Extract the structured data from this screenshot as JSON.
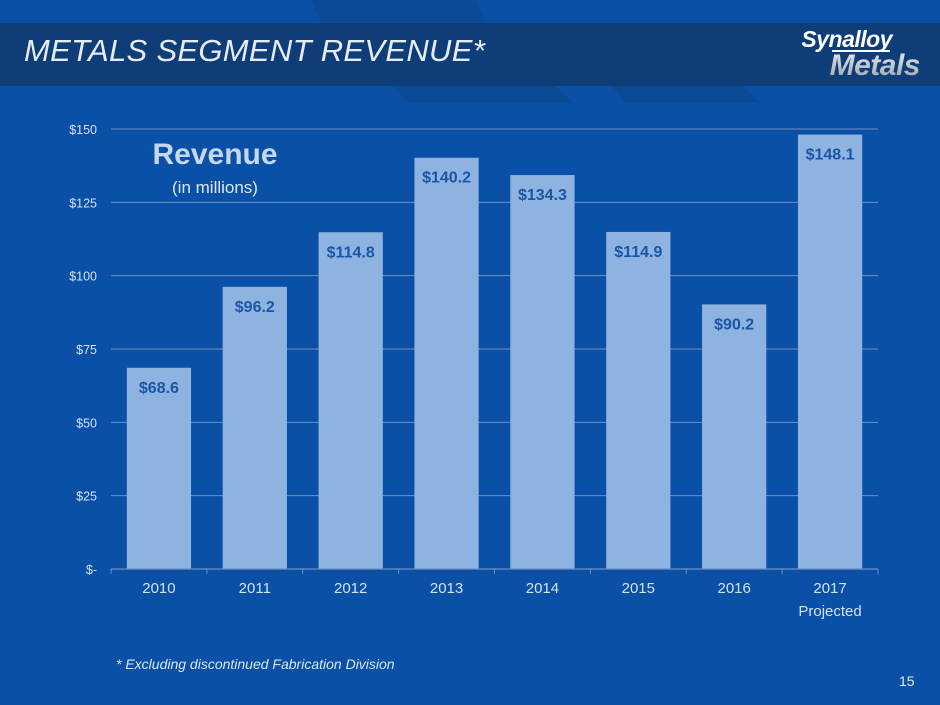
{
  "slide": {
    "title": "METALS SEGMENT REVENUE*",
    "logo": {
      "line1": "Synalloy",
      "line2": "Metals"
    },
    "footnote": "* Excluding discontinued Fabrication Division",
    "page_number": "15",
    "colors": {
      "background": "#0a50a6",
      "header_band": "#0e3d78",
      "bar_fill": "#8eb3e0",
      "bar_label": "#1a56a8",
      "gridline": "#6f8fbf",
      "axis_text": "#d6e2f3"
    }
  },
  "chart_data": {
    "type": "bar",
    "title": "Revenue",
    "subtitle": "(in millions)",
    "categories": [
      "2010",
      "2011",
      "2012",
      "2013",
      "2014",
      "2015",
      "2016",
      "2017\nProjected"
    ],
    "values": [
      68.6,
      96.2,
      114.8,
      140.2,
      134.3,
      114.9,
      90.2,
      148.1
    ],
    "data_labels": [
      "$68.6",
      "$96.2",
      "$114.8",
      "$140.2",
      "$134.3",
      "$114.9",
      "$90.2",
      "$148.1"
    ],
    "xlabel": "",
    "ylabel": "",
    "ylim": [
      0,
      150
    ],
    "yticks": [
      0,
      25,
      50,
      75,
      100,
      125,
      150
    ],
    "ytick_labels": [
      "$-",
      "$25",
      "$50",
      "$75",
      "$100",
      "$125",
      "$150"
    ],
    "grid": true,
    "legend": "none"
  }
}
